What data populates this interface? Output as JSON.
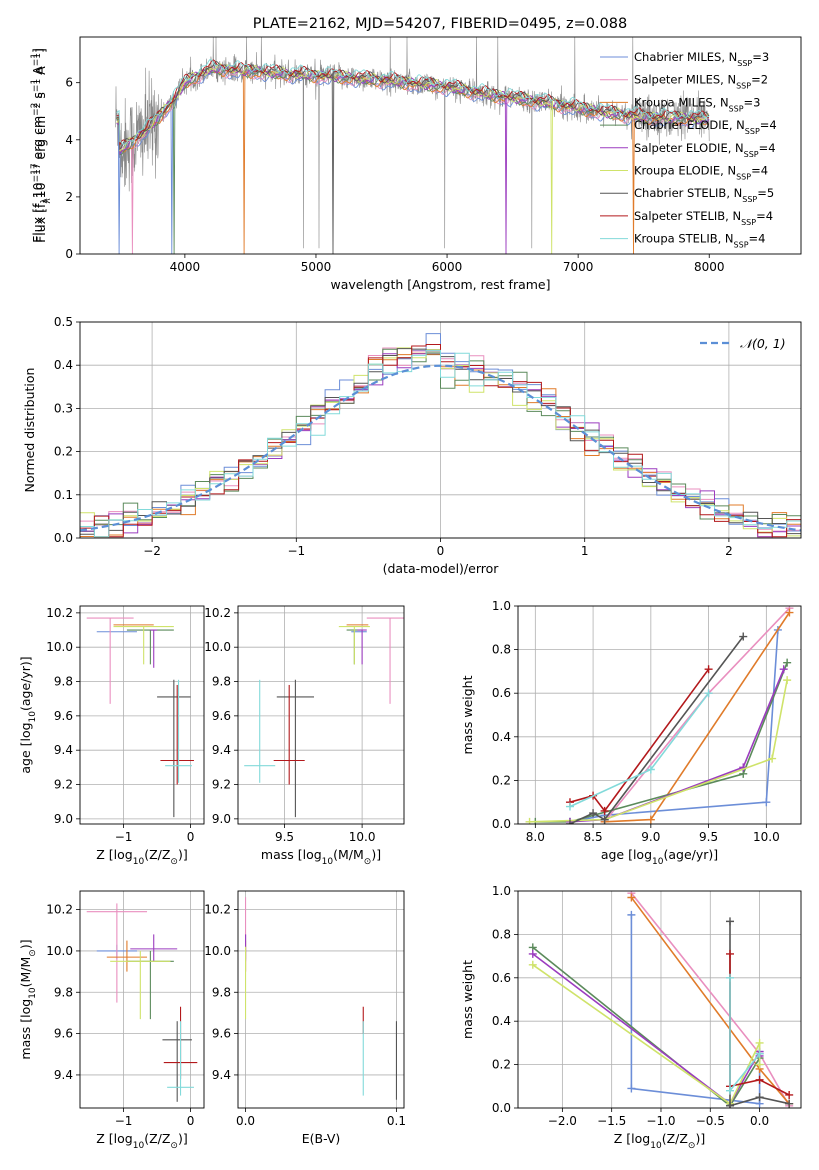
{
  "colors": {
    "chabrier_miles": "#6c8ed8",
    "salpeter_miles": "#e98fbf",
    "kroupa_miles": "#e07b2a",
    "chabrier_elodie": "#5b8a5b",
    "salpeter_elodie": "#9b3cbf",
    "kroupa_elodie": "#cfe36a",
    "chabrier_stelib": "#555555",
    "salpeter_stelib": "#b3191c",
    "kroupa_stelib": "#82dada",
    "data_gray": "#888888",
    "grid": "#b0b0b0"
  },
  "chart_data": [
    {
      "type": "line",
      "title": "PLATE=2162, MJD=54207, FIBERID=0495, z=0.088",
      "xlabel": "wavelength [Angstrom, rest frame]",
      "ylabel": "Flux [f$_\\lambda$10$^{-17}$ erg cm$^{-2}$ s$^{-1}$ A$^{-1}$]",
      "ylabel_parts": [
        "Flux [f",
        "λ",
        "10",
        "−17",
        " erg cm",
        "−2",
        " s",
        "−1",
        " A",
        "−1",
        "]"
      ],
      "xlim": [
        3200,
        8700
      ],
      "ylim": [
        0,
        7.6
      ],
      "xticks": [
        4000,
        5000,
        6000,
        7000,
        8000
      ],
      "yticks": [
        0,
        2,
        4,
        6
      ],
      "continuum_x": [
        3500,
        3700,
        3900,
        4000,
        4200,
        4500,
        4800,
        5200,
        5600,
        6000,
        6300,
        6600,
        6900,
        7200,
        7500,
        7800,
        8000
      ],
      "continuum_y": [
        3.6,
        4.3,
        5.3,
        6.0,
        6.5,
        6.4,
        6.3,
        6.2,
        6.05,
        5.85,
        5.6,
        5.4,
        5.2,
        4.95,
        4.8,
        4.75,
        4.7
      ],
      "legend": [
        {
          "label": "Chabrier MILES, N",
          "sub": "SSP",
          "n": "=3",
          "color": "#6c8ed8"
        },
        {
          "label": "Salpeter MILES, N",
          "sub": "SSP",
          "n": "=2",
          "color": "#e98fbf"
        },
        {
          "label": "Kroupa MILES, N",
          "sub": "SSP",
          "n": "=3",
          "color": "#e07b2a"
        },
        {
          "label": "Chabrier ELODIE, N",
          "sub": "SSP",
          "n": "=4",
          "color": "#5b8a5b"
        },
        {
          "label": "Salpeter ELODIE, N",
          "sub": "SSP",
          "n": "=4",
          "color": "#9b3cbf"
        },
        {
          "label": "Kroupa ELODIE, N",
          "sub": "SSP",
          "n": "=4",
          "color": "#cfe36a"
        },
        {
          "label": "Chabrier STELIB, N",
          "sub": "SSP",
          "n": "=5",
          "color": "#555555"
        },
        {
          "label": "Salpeter STELIB, N",
          "sub": "SSP",
          "n": "=4",
          "color": "#b3191c"
        },
        {
          "label": "Kroupa STELIB, N",
          "sub": "SSP",
          "n": "=4",
          "color": "#82dada"
        }
      ]
    },
    {
      "type": "bar",
      "xlabel": "(data-model)/error",
      "ylabel": "Normed distribution",
      "xlim": [
        -2.5,
        2.5
      ],
      "ylim": [
        0,
        0.5
      ],
      "xticks": [
        -2,
        -1,
        0,
        1,
        2
      ],
      "xtick_labels": [
        "−2",
        "−1",
        "0",
        "1",
        "2"
      ],
      "yticks": [
        0.0,
        0.1,
        0.2,
        0.3,
        0.4,
        0.5
      ],
      "ytick_labels": [
        "0.0",
        "0.1",
        "0.2",
        "0.3",
        "0.4",
        "0.5"
      ],
      "legend": "𝒩(0, 1)",
      "legend_position": "top-right",
      "bin_width": 0.1,
      "bin_start": -2.5
    },
    {
      "type": "scatter",
      "xlabel": "Z [log$_{10}$(Z/Z$_\\odot$)]",
      "ylabel": "age  [log$_{10}$(age/yr)]",
      "xlim": [
        -1.65,
        0.2
      ],
      "ylim": [
        8.97,
        10.24
      ],
      "xticks": [
        -1,
        0
      ],
      "xtick_labels": [
        "−1",
        "0"
      ],
      "yticks": [
        9.0,
        9.2,
        9.4,
        9.6,
        9.8,
        10.0,
        10.2
      ],
      "ytick_labels": [
        "9.0",
        "9.2",
        "9.4",
        "9.6",
        "9.8",
        "10.0",
        "10.2"
      ],
      "points": [
        {
          "x": -1.1,
          "y": 10.09,
          "xerr": 0.3,
          "yerr_lo": 0.0,
          "yerr_hi": 0.0,
          "color": "#6c8ed8"
        },
        {
          "x": -1.2,
          "y": 10.17,
          "xerr": 0.35,
          "yerr_lo": 0.5,
          "yerr_hi": 0.0,
          "color": "#e98fbf"
        },
        {
          "x": -0.85,
          "y": 10.13,
          "xerr": 0.3,
          "yerr_lo": 0.0,
          "yerr_hi": 0.0,
          "color": "#e07b2a"
        },
        {
          "x": -0.6,
          "y": 10.1,
          "xerr": 0.35,
          "yerr_lo": 0.2,
          "yerr_hi": 0.0,
          "color": "#5b8a5b"
        },
        {
          "x": -0.55,
          "y": 10.1,
          "xerr": 0.05,
          "yerr_lo": 0.22,
          "yerr_hi": 0.0,
          "color": "#9b3cbf"
        },
        {
          "x": -0.7,
          "y": 10.12,
          "xerr": 0.45,
          "yerr_lo": 0.22,
          "yerr_hi": 0.0,
          "color": "#cfe36a"
        },
        {
          "x": -0.25,
          "y": 9.71,
          "xerr": 0.25,
          "yerr_lo": 0.7,
          "yerr_hi": 0.1,
          "color": "#555555"
        },
        {
          "x": -0.2,
          "y": 9.34,
          "xerr": 0.25,
          "yerr_lo": 0.14,
          "yerr_hi": 0.44,
          "color": "#b3191c"
        },
        {
          "x": -0.18,
          "y": 9.31,
          "xerr": 0.2,
          "yerr_lo": 0.1,
          "yerr_hi": 0.5,
          "color": "#82dada"
        }
      ]
    },
    {
      "type": "scatter",
      "xlabel": "mass [log$_{10}$(M/M$_\\odot$)]",
      "ylabel": "",
      "xlim": [
        9.2,
        10.27
      ],
      "ylim": [
        8.97,
        10.24
      ],
      "xticks": [
        9.5,
        10.0
      ],
      "xtick_labels": [
        "9.5",
        "10.0"
      ],
      "yticks": [
        9.0,
        9.2,
        9.4,
        9.6,
        9.8,
        10.0,
        10.2
      ],
      "ytick_labels": [
        "9.0",
        "9.2",
        "9.4",
        "9.6",
        "9.8",
        "10.0",
        "10.2"
      ],
      "points": [
        {
          "x": 9.98,
          "y": 10.09,
          "xerr": 0.05,
          "yerr_lo": 0.0,
          "yerr_hi": 0.0,
          "color": "#6c8ed8"
        },
        {
          "x": 10.18,
          "y": 10.17,
          "xerr": 0.15,
          "yerr_lo": 0.5,
          "yerr_hi": 0.0,
          "color": "#e98fbf"
        },
        {
          "x": 9.97,
          "y": 10.13,
          "xerr": 0.07,
          "yerr_lo": 0.0,
          "yerr_hi": 0.0,
          "color": "#e07b2a"
        },
        {
          "x": 9.95,
          "y": 10.1,
          "xerr": 0.05,
          "yerr_lo": 0.2,
          "yerr_hi": 0.0,
          "color": "#5b8a5b"
        },
        {
          "x": 10.0,
          "y": 10.1,
          "xerr": 0.03,
          "yerr_lo": 0.2,
          "yerr_hi": 0.0,
          "color": "#9b3cbf"
        },
        {
          "x": 9.95,
          "y": 10.12,
          "xerr": 0.1,
          "yerr_lo": 0.22,
          "yerr_hi": 0.0,
          "color": "#cfe36a"
        },
        {
          "x": 9.57,
          "y": 9.71,
          "xerr": 0.12,
          "yerr_lo": 0.7,
          "yerr_hi": 0.1,
          "color": "#555555"
        },
        {
          "x": 9.53,
          "y": 9.34,
          "xerr": 0.1,
          "yerr_lo": 0.14,
          "yerr_hi": 0.44,
          "color": "#b3191c"
        },
        {
          "x": 9.34,
          "y": 9.31,
          "xerr": 0.1,
          "yerr_lo": 0.1,
          "yerr_hi": 0.5,
          "color": "#82dada"
        }
      ]
    },
    {
      "type": "line",
      "xlabel": "age  [log$_{10}$(age/yr)]",
      "ylabel": "mass weight",
      "xlim": [
        7.85,
        10.3
      ],
      "ylim": [
        0,
        1.0
      ],
      "xticks": [
        8.0,
        8.5,
        9.0,
        9.5,
        10.0
      ],
      "xtick_labels": [
        "8.0",
        "8.5",
        "9.0",
        "9.5",
        "10.0"
      ],
      "yticks": [
        0.0,
        0.2,
        0.4,
        0.6,
        0.8,
        1.0
      ],
      "ytick_labels": [
        "0.0",
        "0.2",
        "0.4",
        "0.6",
        "0.8",
        "1.0"
      ],
      "series": [
        {
          "color": "#6c8ed8",
          "x": [
            8.3,
            8.6,
            10.0,
            10.1
          ],
          "y": [
            0.01,
            0.04,
            0.1,
            0.89
          ]
        },
        {
          "color": "#e98fbf",
          "x": [
            8.6,
            9.5,
            10.2
          ],
          "y": [
            0.01,
            0.6,
            0.99
          ]
        },
        {
          "color": "#e07b2a",
          "x": [
            8.6,
            9.0,
            10.2
          ],
          "y": [
            0.01,
            0.02,
            0.97
          ]
        },
        {
          "color": "#5b8a5b",
          "x": [
            8.0,
            8.3,
            9.8,
            10.18
          ],
          "y": [
            0.01,
            0.01,
            0.23,
            0.74
          ]
        },
        {
          "color": "#9b3cbf",
          "x": [
            8.3,
            8.6,
            9.8,
            10.15
          ],
          "y": [
            0.01,
            0.02,
            0.26,
            0.71
          ]
        },
        {
          "color": "#cfe36a",
          "x": [
            7.95,
            8.6,
            10.05,
            10.18
          ],
          "y": [
            0.01,
            0.02,
            0.3,
            0.66
          ]
        },
        {
          "color": "#555555",
          "x": [
            8.3,
            8.5,
            8.6,
            9.8
          ],
          "y": [
            0.0,
            0.05,
            0.02,
            0.86
          ]
        },
        {
          "color": "#b3191c",
          "x": [
            8.3,
            8.5,
            8.6,
            9.5
          ],
          "y": [
            0.1,
            0.13,
            0.06,
            0.71
          ]
        },
        {
          "color": "#82dada",
          "x": [
            8.3,
            9.0,
            9.5
          ],
          "y": [
            0.08,
            0.25,
            0.6
          ]
        }
      ]
    },
    {
      "type": "scatter",
      "xlabel": "Z [log$_{10}$(Z/Z$_\\odot$)]",
      "ylabel": "mass [log$_{10}$(M/M$_\\odot$)]",
      "xlim": [
        -1.65,
        0.2
      ],
      "ylim": [
        9.24,
        10.29
      ],
      "xticks": [
        -1,
        0
      ],
      "xtick_labels": [
        "−1",
        "0"
      ],
      "yticks": [
        9.4,
        9.6,
        9.8,
        10.0,
        10.2
      ],
      "ytick_labels": [
        "9.4",
        "9.6",
        "9.8",
        "10.0",
        "10.2"
      ],
      "points": [
        {
          "x": -1.1,
          "y": 10.0,
          "xerr": 0.3,
          "ylo": 9.96,
          "yhi": 10.03,
          "color": "#6c8ed8"
        },
        {
          "x": -1.1,
          "y": 10.19,
          "xerr": 0.45,
          "ylo": 9.75,
          "yhi": 10.23,
          "color": "#e98fbf"
        },
        {
          "x": -0.95,
          "y": 9.97,
          "xerr": 0.3,
          "ylo": 9.9,
          "yhi": 10.05,
          "color": "#e07b2a"
        },
        {
          "x": -0.6,
          "y": 9.95,
          "xerr": 0.35,
          "ylo": 9.67,
          "yhi": 10.0,
          "color": "#5b8a5b"
        },
        {
          "x": -0.55,
          "y": 10.01,
          "xerr": 0.35,
          "ylo": 9.95,
          "yhi": 10.08,
          "color": "#9b3cbf"
        },
        {
          "x": -0.75,
          "y": 9.95,
          "xerr": 0.45,
          "ylo": 9.67,
          "yhi": 10.0,
          "color": "#cfe36a"
        },
        {
          "x": -0.2,
          "y": 9.57,
          "xerr": 0.22,
          "ylo": 9.27,
          "yhi": 9.66,
          "color": "#555555"
        },
        {
          "x": -0.15,
          "y": 9.46,
          "xerr": 0.25,
          "ylo": 9.38,
          "yhi": 9.73,
          "color": "#b3191c"
        },
        {
          "x": -0.15,
          "y": 9.34,
          "xerr": 0.2,
          "ylo": 9.3,
          "yhi": 9.66,
          "color": "#82dada"
        }
      ]
    },
    {
      "type": "scatter",
      "xlabel": "E(B-V)",
      "ylabel": "",
      "xlim": [
        -0.005,
        0.105
      ],
      "ylim": [
        9.24,
        10.29
      ],
      "xticks": [
        0.0,
        0.1
      ],
      "xtick_labels": [
        "0.0",
        "0.1"
      ],
      "yticks": [
        9.4,
        9.6,
        9.8,
        10.0,
        10.2
      ],
      "ytick_labels": [
        "9.4",
        "9.6",
        "9.8",
        "10.0",
        "10.2"
      ],
      "points": [
        {
          "x": 0.0,
          "ylo": 9.96,
          "yhi": 10.08,
          "color": "#6c8ed8"
        },
        {
          "x": 0.0,
          "ylo": 9.9,
          "yhi": 10.26,
          "color": "#e98fbf"
        },
        {
          "x": 0.0,
          "ylo": 9.9,
          "yhi": 10.05,
          "color": "#e07b2a"
        },
        {
          "x": 0.0,
          "ylo": 9.95,
          "yhi": 10.08,
          "color": "#9b3cbf"
        },
        {
          "x": 0.0,
          "ylo": 9.67,
          "yhi": 10.02,
          "color": "#cfe36a"
        },
        {
          "x": 0.1,
          "ylo": 9.28,
          "yhi": 9.66,
          "color": "#555555"
        },
        {
          "x": 0.078,
          "ylo": 9.6,
          "yhi": 9.73,
          "color": "#b3191c"
        },
        {
          "x": 0.078,
          "ylo": 9.3,
          "yhi": 9.66,
          "color": "#82dada"
        }
      ]
    },
    {
      "type": "line",
      "xlabel": "Z [log$_{10}$(Z/Z$_\\odot$)]",
      "ylabel": "mass weight",
      "xlim": [
        -2.45,
        0.42
      ],
      "ylim": [
        0,
        1.0
      ],
      "xticks": [
        -2.0,
        -1.5,
        -1.0,
        -0.5,
        0.0
      ],
      "xtick_labels": [
        "−2.0",
        "−1.5",
        "−1.0",
        "−0.5",
        "0.0"
      ],
      "yticks": [
        0.0,
        0.2,
        0.4,
        0.6,
        0.8,
        1.0
      ],
      "ytick_labels": [
        "0.0",
        "0.2",
        "0.4",
        "0.6",
        "0.8",
        "1.0"
      ],
      "series": [
        {
          "color": "#6c8ed8",
          "x": [
            -1.3,
            -1.3,
            0.0,
            0.0
          ],
          "y": [
            0.89,
            0.09,
            0.02,
            0.26
          ]
        },
        {
          "color": "#e98fbf",
          "x": [
            -1.3,
            0.0,
            0.3
          ],
          "y": [
            0.99,
            0.25,
            0.01
          ]
        },
        {
          "color": "#e07b2a",
          "x": [
            -1.3,
            0.0,
            0.3
          ],
          "y": [
            0.97,
            0.18,
            0.02
          ]
        },
        {
          "color": "#5b8a5b",
          "x": [
            -2.3,
            -0.3,
            0.0,
            0.0
          ],
          "y": [
            0.74,
            0.01,
            0.23,
            0.25
          ]
        },
        {
          "color": "#9b3cbf",
          "x": [
            -2.3,
            -0.3,
            0.0,
            0.0
          ],
          "y": [
            0.71,
            0.02,
            0.26,
            0.24
          ]
        },
        {
          "color": "#cfe36a",
          "x": [
            -2.3,
            -0.3,
            0.0,
            0.0
          ],
          "y": [
            0.66,
            0.02,
            0.3,
            0.2
          ]
        },
        {
          "color": "#555555",
          "x": [
            -0.3,
            -0.3,
            0.0,
            0.3
          ],
          "y": [
            0.86,
            0.01,
            0.05,
            0.02
          ]
        },
        {
          "color": "#b3191c",
          "x": [
            -0.3,
            -0.3,
            0.0,
            0.3
          ],
          "y": [
            0.71,
            0.1,
            0.13,
            0.06
          ]
        },
        {
          "color": "#82dada",
          "x": [
            -0.3,
            -0.3,
            0.0
          ],
          "y": [
            0.6,
            0.08,
            0.25
          ]
        }
      ]
    }
  ]
}
